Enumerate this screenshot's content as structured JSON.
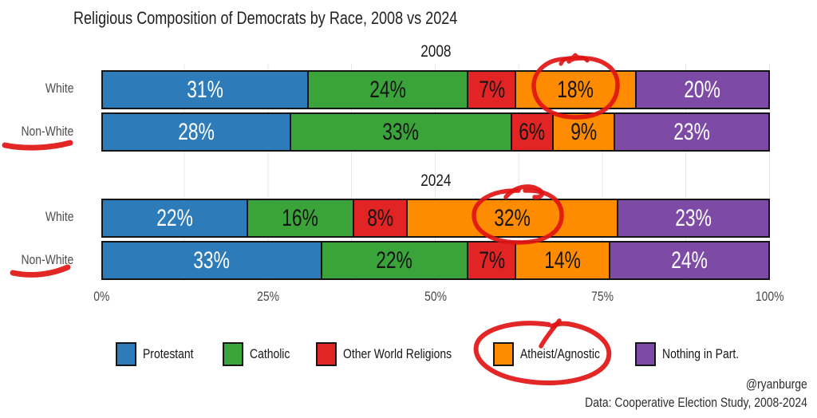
{
  "title": "Religious Composition of Democrats by Race, 2008 vs 2024",
  "chart_data": {
    "type": "bar",
    "subtype": "horizontal-stacked-100pct",
    "grid": "light vertical gridlines every 12.5%",
    "legend_position": "bottom",
    "categories": [
      "Protestant",
      "Catholic",
      "Other World Religions",
      "Atheist/Agnostic",
      "Nothing in Part."
    ],
    "series_colors": [
      "#2d7bb9",
      "#3aa33a",
      "#e22424",
      "#ff8c00",
      "#7d4ba6"
    ],
    "segment_label_colors": [
      "#ffffff",
      "#151515",
      "#151515",
      "#151515",
      "#ffffff"
    ],
    "xlim": [
      0,
      100
    ],
    "x_ticks": [
      "0%",
      "25%",
      "50%",
      "75%",
      "100%"
    ],
    "panels": [
      {
        "title": "2008",
        "rows": [
          {
            "label": "White",
            "values": [
              31,
              24,
              7,
              18,
              20
            ],
            "labels": [
              "31%",
              "24%",
              "7%",
              "18%",
              "20%"
            ]
          },
          {
            "label": "Non-White",
            "values": [
              28,
              33,
              6,
              9,
              23
            ],
            "labels": [
              "28%",
              "33%",
              "6%",
              "9%",
              "23%"
            ]
          }
        ]
      },
      {
        "title": "2024",
        "rows": [
          {
            "label": "White",
            "values": [
              22,
              16,
              8,
              32,
              23
            ],
            "labels": [
              "22%",
              "16%",
              "8%",
              "32%",
              "23%"
            ]
          },
          {
            "label": "Non-White",
            "values": [
              33,
              22,
              7,
              14,
              24
            ],
            "labels": [
              "33%",
              "22%",
              "7%",
              "14%",
              "24%"
            ]
          }
        ]
      }
    ],
    "annotations": [
      "hand-drawn red marker circle around 18% segment label (2008 White, Atheist/Agnostic)",
      "hand-drawn red marker circle around 32% segment label (2024 White, Atheist/Agnostic)",
      "hand-drawn red marker circle around Atheist/Agnostic legend entry",
      "hand-drawn red marker underline under 2008 Non-White row label",
      "hand-drawn red marker underline under 2024 Non-White row label"
    ],
    "annotation_color": "#e11414"
  },
  "attribution": {
    "handle": "@ryanburge",
    "source": "Data: Cooperative Election Study, 2008-2024"
  }
}
